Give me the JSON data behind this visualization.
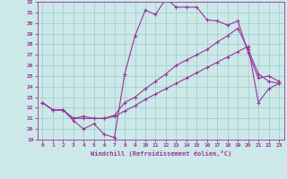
{
  "xlabel": "Windchill (Refroidissement éolien,°C)",
  "bg_color": "#cce8e8",
  "grid_color": "#99cccc",
  "line_color": "#993399",
  "xlim": [
    -0.5,
    23.5
  ],
  "ylim": [
    19,
    32
  ],
  "yticks": [
    19,
    20,
    21,
    22,
    23,
    24,
    25,
    26,
    27,
    28,
    29,
    30,
    31,
    32
  ],
  "xticks": [
    0,
    1,
    2,
    3,
    4,
    5,
    6,
    7,
    8,
    9,
    10,
    11,
    12,
    13,
    14,
    15,
    16,
    17,
    18,
    19,
    20,
    21,
    22,
    23
  ],
  "line1_x": [
    0,
    1,
    2,
    3,
    4,
    5,
    6,
    7,
    8,
    9,
    10,
    11,
    12,
    13,
    14,
    15,
    16,
    17,
    18,
    19,
    20,
    21,
    22,
    23
  ],
  "line1_y": [
    22.5,
    21.8,
    21.8,
    20.8,
    20.0,
    20.5,
    19.5,
    19.2,
    25.2,
    28.8,
    31.2,
    30.8,
    32.3,
    31.5,
    31.5,
    31.5,
    30.3,
    30.2,
    29.8,
    30.2,
    27.2,
    24.8,
    25.0,
    24.5
  ],
  "line2_x": [
    0,
    1,
    2,
    3,
    4,
    5,
    6,
    7,
    8,
    9,
    10,
    11,
    12,
    13,
    14,
    15,
    16,
    17,
    18,
    19,
    20,
    21,
    22,
    23
  ],
  "line2_y": [
    22.5,
    21.8,
    21.8,
    21.0,
    21.2,
    21.0,
    21.0,
    21.3,
    22.5,
    23.0,
    23.8,
    24.5,
    25.2,
    26.0,
    26.5,
    27.0,
    27.5,
    28.2,
    28.8,
    29.5,
    27.5,
    25.2,
    24.5,
    24.3
  ],
  "line3_x": [
    0,
    1,
    2,
    3,
    4,
    5,
    6,
    7,
    8,
    9,
    10,
    11,
    12,
    13,
    14,
    15,
    16,
    17,
    18,
    19,
    20,
    21,
    22,
    23
  ],
  "line3_y": [
    22.5,
    21.8,
    21.8,
    21.0,
    21.0,
    21.0,
    21.0,
    21.2,
    21.7,
    22.2,
    22.8,
    23.3,
    23.8,
    24.3,
    24.8,
    25.3,
    25.8,
    26.3,
    26.8,
    27.3,
    27.8,
    22.5,
    23.8,
    24.3
  ]
}
